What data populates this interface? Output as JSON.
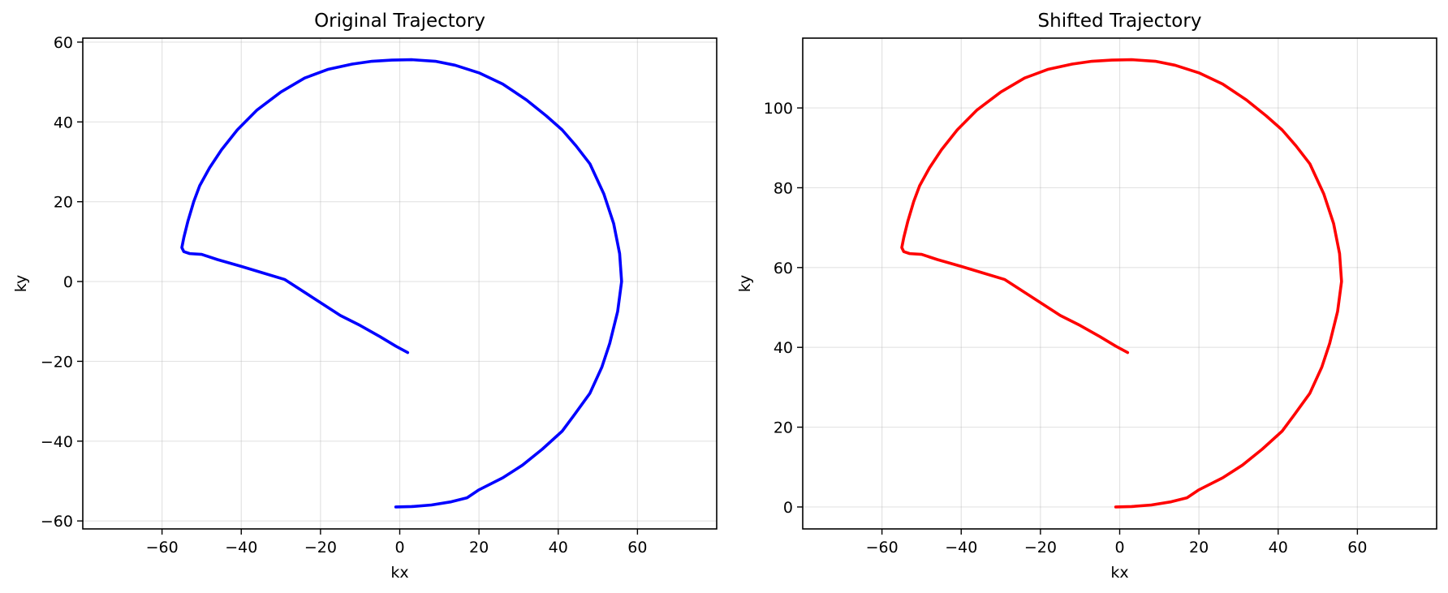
{
  "chart_data": [
    {
      "type": "line",
      "title": "Original Trajectory",
      "xlabel": "kx",
      "ylabel": "ky",
      "xlim": [
        -80,
        80
      ],
      "ylim": [
        -62,
        61
      ],
      "xticks": [
        -60,
        -40,
        -20,
        0,
        20,
        40,
        60
      ],
      "yticks": [
        -60,
        -40,
        -20,
        0,
        20,
        40,
        60
      ],
      "grid": true,
      "series": [
        {
          "color": "#0000ff",
          "points": [
            [
              -1,
              -56.5
            ],
            [
              3,
              -56.4
            ],
            [
              8,
              -56
            ],
            [
              13,
              -55.2
            ],
            [
              17,
              -54.2
            ],
            [
              20,
              -52.2
            ],
            [
              26,
              -49.2
            ],
            [
              31,
              -46
            ],
            [
              36,
              -42
            ],
            [
              41,
              -37.5
            ],
            [
              44,
              -33.5
            ],
            [
              48,
              -28
            ],
            [
              51,
              -21.5
            ],
            [
              53,
              -15.5
            ],
            [
              55,
              -7.5
            ],
            [
              56,
              0
            ],
            [
              55.5,
              7
            ],
            [
              54,
              14.5
            ],
            [
              51.5,
              22
            ],
            [
              48,
              29.5
            ],
            [
              44.5,
              34
            ],
            [
              41,
              38
            ],
            [
              37,
              41.5
            ],
            [
              32,
              45.5
            ],
            [
              26,
              49.5
            ],
            [
              20,
              52.3
            ],
            [
              14,
              54.2
            ],
            [
              9,
              55.2
            ],
            [
              3,
              55.6
            ],
            [
              -2,
              55.5
            ],
            [
              -7,
              55.2
            ],
            [
              -12,
              54.5
            ],
            [
              -18,
              53.2
            ],
            [
              -24,
              51
            ],
            [
              -30,
              47.5
            ],
            [
              -36,
              43
            ],
            [
              -41,
              38
            ],
            [
              -45,
              33
            ],
            [
              -48,
              28.5
            ],
            [
              -50.5,
              24
            ],
            [
              -52,
              20
            ],
            [
              -53.5,
              15
            ],
            [
              -54.5,
              11
            ],
            [
              -55,
              8.5
            ],
            [
              -54.5,
              7.5
            ],
            [
              -53,
              7
            ],
            [
              -50,
              6.8
            ],
            [
              -46,
              5.5
            ],
            [
              -40,
              3.8
            ],
            [
              -35,
              2.3
            ],
            [
              -29,
              0.5
            ],
            [
              -22,
              -4
            ],
            [
              -15,
              -8.5
            ],
            [
              -10,
              -11
            ],
            [
              -5,
              -13.8
            ],
            [
              -1,
              -16.2
            ],
            [
              2,
              -17.8
            ]
          ]
        }
      ]
    },
    {
      "type": "line",
      "title": "Shifted Trajectory",
      "xlabel": "kx",
      "ylabel": "ky",
      "xlim": [
        -80,
        80
      ],
      "ylim": [
        -5.5,
        117.5
      ],
      "xticks": [
        -60,
        -40,
        -20,
        0,
        20,
        40,
        60
      ],
      "yticks": [
        0,
        20,
        40,
        60,
        80,
        100
      ],
      "grid": true,
      "series": [
        {
          "color": "#ff0000",
          "points": [
            [
              -1,
              0
            ],
            [
              3,
              0.1
            ],
            [
              8,
              0.5
            ],
            [
              13,
              1.3
            ],
            [
              17,
              2.3
            ],
            [
              20,
              4.3
            ],
            [
              26,
              7.3
            ],
            [
              31,
              10.5
            ],
            [
              36,
              14.5
            ],
            [
              41,
              19
            ],
            [
              44,
              23
            ],
            [
              48,
              28.5
            ],
            [
              51,
              35
            ],
            [
              53,
              41
            ],
            [
              55,
              49
            ],
            [
              56,
              56.5
            ],
            [
              55.5,
              63.5
            ],
            [
              54,
              71
            ],
            [
              51.5,
              78.5
            ],
            [
              48,
              86
            ],
            [
              44.5,
              90.5
            ],
            [
              41,
              94.5
            ],
            [
              37,
              98
            ],
            [
              32,
              102
            ],
            [
              26,
              106
            ],
            [
              20,
              108.8
            ],
            [
              14,
              110.7
            ],
            [
              9,
              111.7
            ],
            [
              3,
              112.1
            ],
            [
              -2,
              112
            ],
            [
              -7,
              111.7
            ],
            [
              -12,
              111
            ],
            [
              -18,
              109.7
            ],
            [
              -24,
              107.5
            ],
            [
              -30,
              104
            ],
            [
              -36,
              99.5
            ],
            [
              -41,
              94.5
            ],
            [
              -45,
              89.5
            ],
            [
              -48,
              85
            ],
            [
              -50.5,
              80.5
            ],
            [
              -52,
              76.5
            ],
            [
              -53.5,
              71.5
            ],
            [
              -54.5,
              67.5
            ],
            [
              -55,
              65
            ],
            [
              -54.5,
              64
            ],
            [
              -53,
              63.5
            ],
            [
              -50,
              63.3
            ],
            [
              -46,
              62
            ],
            [
              -40,
              60.3
            ],
            [
              -35,
              58.8
            ],
            [
              -29,
              57
            ],
            [
              -22,
              52.5
            ],
            [
              -15,
              48
            ],
            [
              -10,
              45.5
            ],
            [
              -5,
              42.7
            ],
            [
              -1,
              40.3
            ],
            [
              2,
              38.7
            ]
          ]
        }
      ]
    }
  ]
}
